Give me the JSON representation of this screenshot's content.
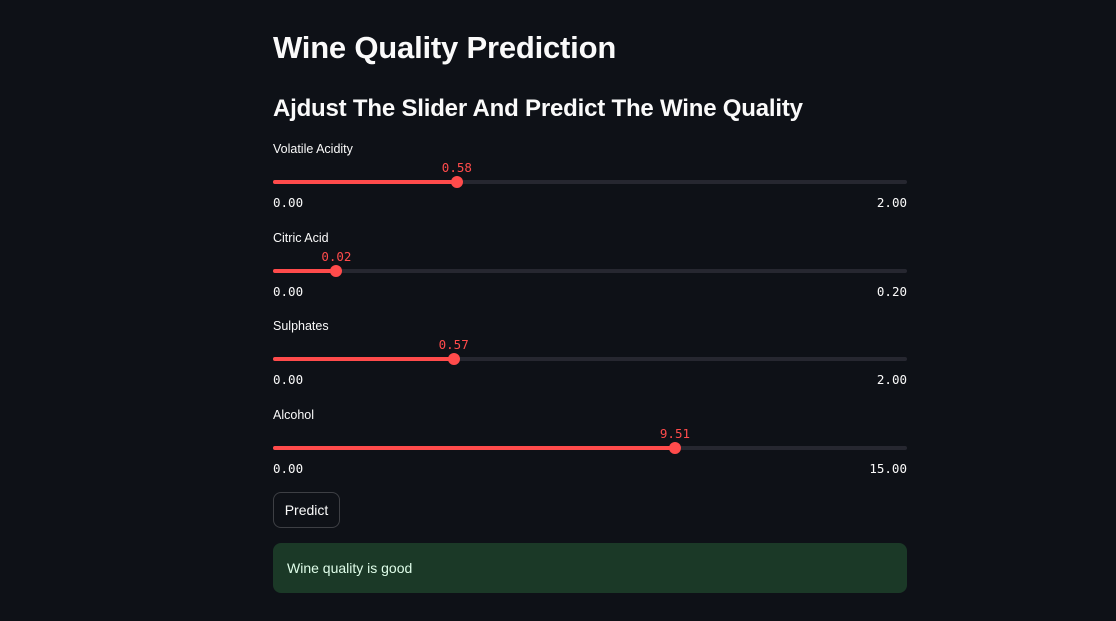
{
  "page": {
    "title": "Wine Quality Prediction",
    "subtitle": "Ajdust The Slider And Predict The Wine Quality"
  },
  "sliders": [
    {
      "label": "Volatile Acidity",
      "value": "0.58",
      "min": "0.00",
      "max": "2.00"
    },
    {
      "label": "Citric Acid",
      "value": "0.02",
      "min": "0.00",
      "max": "0.20"
    },
    {
      "label": "Sulphates",
      "value": "0.57",
      "min": "0.00",
      "max": "2.00"
    },
    {
      "label": "Alcohol",
      "value": "9.51",
      "min": "0.00",
      "max": "15.00"
    }
  ],
  "predict_button": {
    "label": "Predict"
  },
  "result": {
    "text": "Wine quality is good"
  },
  "colors": {
    "background": "#0e1117",
    "accent": "#ff4b4b",
    "track": "#262730",
    "success_bg": "#1b3927",
    "success_text": "#dffde9"
  }
}
